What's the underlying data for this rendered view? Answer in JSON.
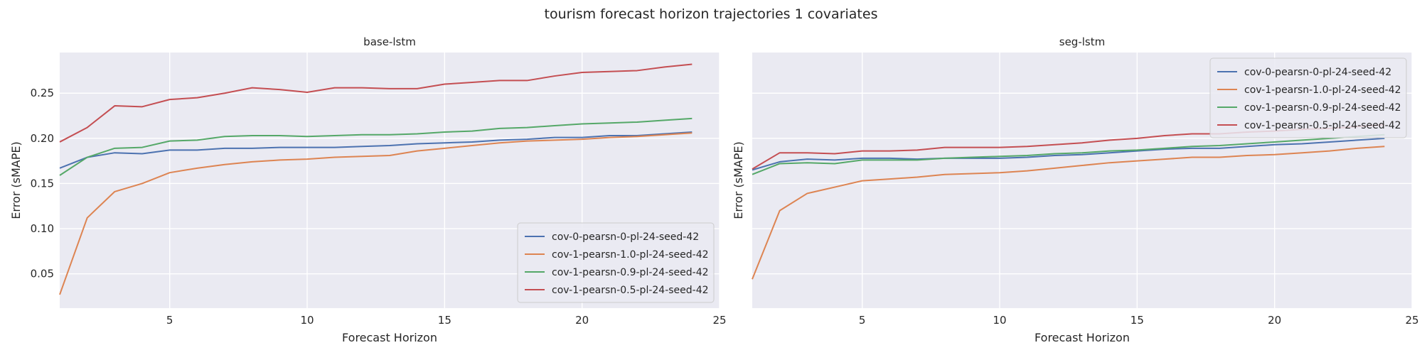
{
  "figure": {
    "title": "tourism forecast horizon trajectories 1 covariates"
  },
  "series_colors": [
    "#4c72b0",
    "#dd8452",
    "#55a868",
    "#c44e52"
  ],
  "chart_data": [
    {
      "type": "line",
      "title": "base-lstm",
      "xlabel": "Forecast Horizon",
      "ylabel": "Error (sMAPE)",
      "xlim": [
        1,
        25
      ],
      "ylim": [
        0.012,
        0.295
      ],
      "xticks": [
        5,
        10,
        15,
        20,
        25
      ],
      "yticks": [
        0.05,
        0.1,
        0.15,
        0.2,
        0.25
      ],
      "grid": true,
      "legend_position": "lower-right",
      "x": [
        1,
        2,
        3,
        4,
        5,
        6,
        7,
        8,
        9,
        10,
        11,
        12,
        13,
        14,
        15,
        16,
        17,
        18,
        19,
        20,
        21,
        22,
        23,
        24
      ],
      "series": [
        {
          "name": "cov-0-pearsn-0-pl-24-seed-42",
          "values": [
            0.167,
            0.179,
            0.184,
            0.183,
            0.187,
            0.187,
            0.189,
            0.189,
            0.19,
            0.19,
            0.19,
            0.191,
            0.192,
            0.194,
            0.195,
            0.196,
            0.198,
            0.199,
            0.201,
            0.201,
            0.203,
            0.203,
            0.205,
            0.207
          ]
        },
        {
          "name": "cov-1-pearsn-1.0-pl-24-seed-42",
          "values": [
            0.027,
            0.112,
            0.141,
            0.15,
            0.162,
            0.167,
            0.171,
            0.174,
            0.176,
            0.177,
            0.179,
            0.18,
            0.181,
            0.186,
            0.189,
            0.192,
            0.195,
            0.197,
            0.198,
            0.199,
            0.201,
            0.202,
            0.204,
            0.206
          ]
        },
        {
          "name": "cov-1-pearsn-0.9-pl-24-seed-42",
          "values": [
            0.159,
            0.179,
            0.189,
            0.19,
            0.197,
            0.198,
            0.202,
            0.203,
            0.203,
            0.202,
            0.203,
            0.204,
            0.204,
            0.205,
            0.207,
            0.208,
            0.211,
            0.212,
            0.214,
            0.216,
            0.217,
            0.218,
            0.22,
            0.222
          ]
        },
        {
          "name": "cov-1-pearsn-0.5-pl-24-seed-42",
          "values": [
            0.196,
            0.212,
            0.236,
            0.235,
            0.243,
            0.245,
            0.25,
            0.256,
            0.254,
            0.251,
            0.256,
            0.256,
            0.255,
            0.255,
            0.26,
            0.262,
            0.264,
            0.264,
            0.269,
            0.273,
            0.274,
            0.275,
            0.279,
            0.282
          ]
        }
      ]
    },
    {
      "type": "line",
      "title": "seg-lstm",
      "xlabel": "Forecast Horizon",
      "ylabel": "Error (sMAPE)",
      "xlim": [
        1,
        25
      ],
      "ylim": [
        0.012,
        0.295
      ],
      "xticks": [
        5,
        10,
        15,
        20,
        25
      ],
      "yticks": [
        0.05,
        0.1,
        0.15,
        0.2,
        0.25
      ],
      "grid": true,
      "legend_position": "upper-right",
      "x": [
        1,
        2,
        3,
        4,
        5,
        6,
        7,
        8,
        9,
        10,
        11,
        12,
        13,
        14,
        15,
        16,
        17,
        18,
        19,
        20,
        21,
        22,
        23,
        24
      ],
      "series": [
        {
          "name": "cov-0-pearsn-0-pl-24-seed-42",
          "values": [
            0.165,
            0.174,
            0.177,
            0.176,
            0.178,
            0.178,
            0.177,
            0.178,
            0.178,
            0.178,
            0.179,
            0.181,
            0.182,
            0.184,
            0.186,
            0.188,
            0.189,
            0.189,
            0.191,
            0.193,
            0.194,
            0.196,
            0.198,
            0.2
          ]
        },
        {
          "name": "cov-1-pearsn-1.0-pl-24-seed-42",
          "values": [
            0.044,
            0.12,
            0.139,
            0.146,
            0.153,
            0.155,
            0.157,
            0.16,
            0.161,
            0.162,
            0.164,
            0.167,
            0.17,
            0.173,
            0.175,
            0.177,
            0.179,
            0.179,
            0.181,
            0.182,
            0.184,
            0.186,
            0.189,
            0.191
          ]
        },
        {
          "name": "cov-1-pearsn-0.9-pl-24-seed-42",
          "values": [
            0.16,
            0.172,
            0.173,
            0.172,
            0.176,
            0.176,
            0.176,
            0.178,
            0.179,
            0.18,
            0.181,
            0.183,
            0.184,
            0.186,
            0.187,
            0.189,
            0.191,
            0.192,
            0.194,
            0.196,
            0.198,
            0.2,
            0.202,
            0.204
          ]
        },
        {
          "name": "cov-1-pearsn-0.5-pl-24-seed-42",
          "values": [
            0.166,
            0.184,
            0.184,
            0.183,
            0.186,
            0.186,
            0.187,
            0.19,
            0.19,
            0.19,
            0.191,
            0.193,
            0.195,
            0.198,
            0.2,
            0.203,
            0.205,
            0.205,
            0.207,
            0.208,
            0.21,
            0.211,
            0.213,
            0.215
          ]
        }
      ]
    }
  ]
}
